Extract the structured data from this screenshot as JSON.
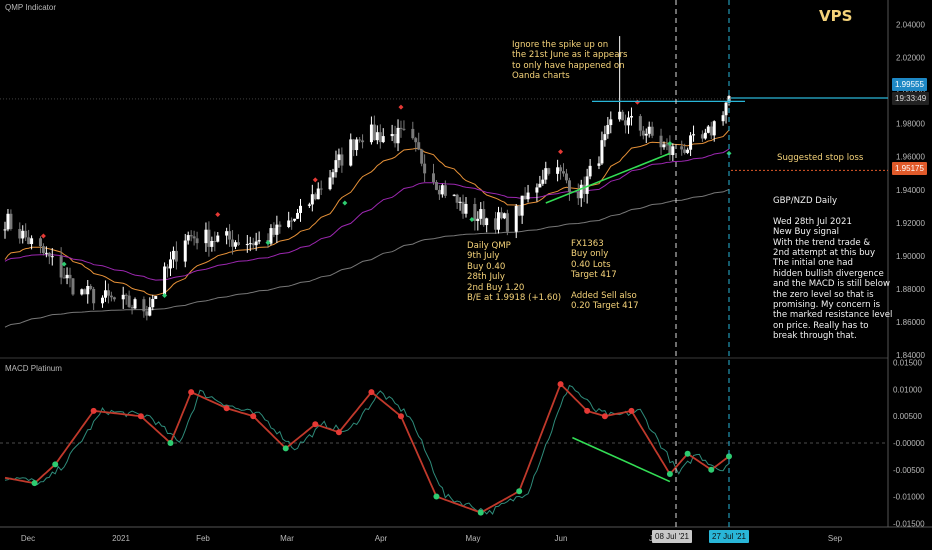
{
  "indicator_label": "QMP Indicator",
  "macd_label": "MACD Platinum",
  "watermark": "VPS",
  "colors": {
    "up": "#ffffff",
    "down": "#7a7a7a",
    "ema_fast": "#e69138",
    "ema_mid": "#9c27b0",
    "ema_slow": "#777777",
    "macd": "#c0392b",
    "signal": "#2e8b7a",
    "resistance": "#29b6d8",
    "stop": "#e05a2a",
    "divergence": "#33dd55",
    "note": "#f5d37a"
  },
  "price_axis": {
    "ticks": [
      "2.04000",
      "2.02000",
      "2.00000",
      "1.98000",
      "1.96000",
      "1.94000",
      "1.92000",
      "1.90000",
      "1.88000",
      "1.86000",
      "1.84000"
    ],
    "current_price": "1.99555",
    "countdown": "19:33:49",
    "stop_price": "1.95175"
  },
  "macd_axis": {
    "ticks": [
      "0.01500",
      "0.01000",
      "0.00500",
      "-0.00000",
      "-0.00500",
      "-0.01000",
      "-0.01500"
    ]
  },
  "time_axis": {
    "ticks": [
      "Dec",
      "2021",
      "Feb",
      "Mar",
      "Apr",
      "May",
      "Jun",
      "J",
      "Sep"
    ],
    "marker_1": "08 Jul '21",
    "marker_2": "27 Jul '21"
  },
  "annotations": {
    "spike_note": "Ignore the spike up on\nthe 21st June as it appears\nto only have happened on\nOanda charts",
    "stop_label": "Suggested stop loss",
    "qmp_note": "Daily QMP\n9th July\nBuy 0.40\n28th July\n2nd Buy 1.20\nB/E at 1.9918 (+1.60)",
    "fx_note": "FX1363\nBuy only\n0.40 Lots\nTarget 417\n\nAdded Sell also\n0.20 Target 417",
    "analysis": "GBP/NZD Daily\n\nWed 28th Jul 2021\nNew Buy signal\nWith the trend trade &\n2nd attempt at this buy\nThe initial one had\nhidden bullish divergence\nand the MACD is still below\nthe zero level so that is\npromising. My concern is\nthe marked resistance level\non price. Really has to\nbreak through that."
  },
  "chart_data": [
    {
      "type": "candlestick",
      "title": "QMP Indicator",
      "symbol": "GBP/NZD Daily",
      "ylim": [
        1.84,
        2.05
      ],
      "x": [
        "2020-11-25",
        "2021-07-28"
      ],
      "anchors": [
        {
          "date": "2020-11-25",
          "price": 1.922
        },
        {
          "date": "2020-12-10",
          "price": 1.898
        },
        {
          "date": "2020-12-20",
          "price": 1.878
        },
        {
          "date": "2021-01-12",
          "price": 1.868
        },
        {
          "date": "2021-01-25",
          "price": 1.912
        },
        {
          "date": "2021-02-20",
          "price": 1.908
        },
        {
          "date": "2021-03-05",
          "price": 1.925
        },
        {
          "date": "2021-03-25",
          "price": 1.974
        },
        {
          "date": "2021-04-10",
          "price": 1.972
        },
        {
          "date": "2021-04-20",
          "price": 1.945
        },
        {
          "date": "2021-05-01",
          "price": 1.925
        },
        {
          "date": "2021-05-15",
          "price": 1.92
        },
        {
          "date": "2021-05-28",
          "price": 1.955
        },
        {
          "date": "2021-06-08",
          "price": 1.938
        },
        {
          "date": "2021-06-20",
          "price": 1.985
        },
        {
          "date": "2021-06-30",
          "price": 1.975
        },
        {
          "date": "2021-07-08",
          "price": 1.963
        },
        {
          "date": "2021-07-20",
          "price": 1.97
        },
        {
          "date": "2021-07-28",
          "price": 1.996
        }
      ],
      "resistance": 1.9935,
      "current_price": 1.99555,
      "stop_loss": 1.95175,
      "spike_high": 2.033
    },
    {
      "type": "line",
      "title": "MACD Platinum",
      "ylim": [
        -0.0155,
        0.0155
      ],
      "macd_anchors": [
        {
          "date": "2020-11-25",
          "value": -0.0065
        },
        {
          "date": "2020-12-05",
          "value": -0.0075
        },
        {
          "date": "2020-12-12",
          "value": -0.004
        },
        {
          "date": "2020-12-25",
          "value": 0.006
        },
        {
          "date": "2021-01-10",
          "value": 0.005
        },
        {
          "date": "2021-01-20",
          "value": 0.0
        },
        {
          "date": "2021-01-27",
          "value": 0.0095
        },
        {
          "date": "2021-02-08",
          "value": 0.0065
        },
        {
          "date": "2021-02-17",
          "value": 0.005
        },
        {
          "date": "2021-02-28",
          "value": -0.001
        },
        {
          "date": "2021-03-10",
          "value": 0.0035
        },
        {
          "date": "2021-03-18",
          "value": 0.002
        },
        {
          "date": "2021-03-29",
          "value": 0.0095
        },
        {
          "date": "2021-04-08",
          "value": 0.005
        },
        {
          "date": "2021-04-20",
          "value": -0.01
        },
        {
          "date": "2021-05-05",
          "value": -0.013
        },
        {
          "date": "2021-05-18",
          "value": -0.009
        },
        {
          "date": "2021-06-01",
          "value": 0.011
        },
        {
          "date": "2021-06-10",
          "value": 0.006
        },
        {
          "date": "2021-06-16",
          "value": 0.005
        },
        {
          "date": "2021-06-25",
          "value": 0.006
        },
        {
          "date": "2021-07-08",
          "value": -0.0058
        },
        {
          "date": "2021-07-14",
          "value": -0.002
        },
        {
          "date": "2021-07-22",
          "value": -0.005
        },
        {
          "date": "2021-07-28",
          "value": -0.0025
        }
      ]
    }
  ]
}
